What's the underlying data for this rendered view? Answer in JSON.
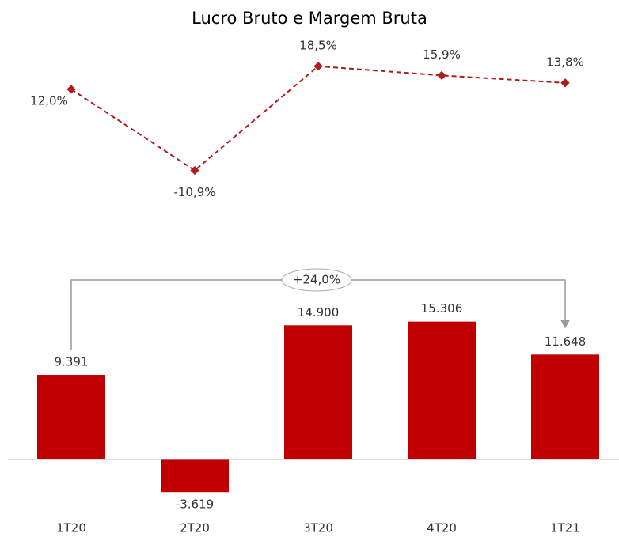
{
  "chart_data": [
    {
      "type": "line",
      "title": "Lucro Bruto e Margem Bruta",
      "categories": [
        "1T20",
        "2T20",
        "3T20",
        "4T20",
        "1T21"
      ],
      "values": [
        12.0,
        -10.9,
        18.5,
        15.9,
        13.8
      ],
      "value_labels": [
        "12,0%",
        "-10,9%",
        "18,5%",
        "15,9%",
        "13,8%"
      ],
      "color": "#b01c1c",
      "line_style": "dashed",
      "ylim": [
        -18.6,
        23.8
      ]
    },
    {
      "type": "bar",
      "categories": [
        "1T20",
        "2T20",
        "3T20",
        "4T20",
        "1T21"
      ],
      "values": [
        9391,
        -3619,
        14900,
        15306,
        11648
      ],
      "value_labels": [
        "9.391",
        "-3.619",
        "14.900",
        "15.306",
        "11.648"
      ],
      "color": "#c00000",
      "ylim": [
        -5180,
        15890
      ],
      "annotation": "+24,0%"
    }
  ]
}
